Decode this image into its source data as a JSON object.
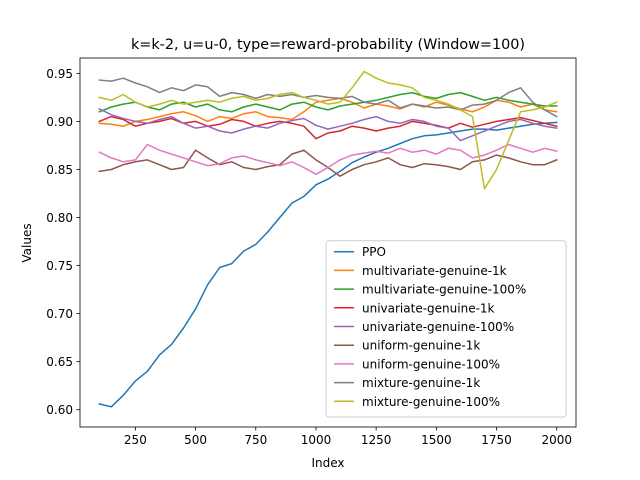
{
  "chart_data": {
    "type": "line",
    "title": "k=k-2, u=u-0, type=reward-probability (Window=100)",
    "xlabel": "Index",
    "ylabel": "Values",
    "xlim": [
      20,
      2080
    ],
    "ylim": [
      0.582,
      0.966
    ],
    "xticks": [
      250,
      500,
      750,
      1000,
      1250,
      1500,
      1750,
      2000
    ],
    "yticks": [
      0.6,
      0.65,
      0.7,
      0.75,
      0.8,
      0.85,
      0.9,
      0.95
    ],
    "xtick_labels": [
      "250",
      "500",
      "750",
      "1000",
      "1250",
      "1500",
      "1750",
      "2000"
    ],
    "ytick_labels": [
      "0.60",
      "0.65",
      "0.70",
      "0.75",
      "0.80",
      "0.85",
      "0.90",
      "0.95"
    ],
    "legend_position": "lower-right",
    "grid": false,
    "x": [
      100,
      150,
      200,
      250,
      300,
      350,
      400,
      450,
      500,
      550,
      600,
      650,
      700,
      750,
      800,
      850,
      900,
      950,
      1000,
      1050,
      1100,
      1150,
      1200,
      1250,
      1300,
      1350,
      1400,
      1450,
      1500,
      1550,
      1600,
      1650,
      1700,
      1750,
      1800,
      1850,
      1900,
      1950,
      2000
    ],
    "series": [
      {
        "name": "PPO",
        "color": "#1f77b4",
        "values": [
          0.606,
          0.603,
          0.615,
          0.63,
          0.64,
          0.657,
          0.668,
          0.685,
          0.705,
          0.73,
          0.748,
          0.752,
          0.765,
          0.772,
          0.785,
          0.8,
          0.815,
          0.822,
          0.834,
          0.84,
          0.848,
          0.857,
          0.863,
          0.868,
          0.872,
          0.877,
          0.882,
          0.885,
          0.886,
          0.888,
          0.89,
          0.892,
          0.892,
          0.891,
          0.893,
          0.895,
          0.897,
          0.898,
          0.899
        ]
      },
      {
        "name": "multivariate-genuine-1k",
        "color": "#ff7f0e",
        "values": [
          0.898,
          0.897,
          0.895,
          0.9,
          0.902,
          0.905,
          0.908,
          0.91,
          0.906,
          0.9,
          0.905,
          0.903,
          0.908,
          0.91,
          0.905,
          0.904,
          0.902,
          0.91,
          0.92,
          0.922,
          0.924,
          0.92,
          0.914,
          0.918,
          0.916,
          0.913,
          0.918,
          0.915,
          0.92,
          0.917,
          0.913,
          0.91,
          0.915,
          0.922,
          0.92,
          0.915,
          0.918,
          0.912,
          0.91
        ]
      },
      {
        "name": "multivariate-genuine-100%",
        "color": "#2ca02c",
        "values": [
          0.91,
          0.915,
          0.918,
          0.92,
          0.915,
          0.912,
          0.918,
          0.92,
          0.915,
          0.918,
          0.912,
          0.91,
          0.915,
          0.918,
          0.915,
          0.912,
          0.918,
          0.92,
          0.915,
          0.912,
          0.916,
          0.918,
          0.92,
          0.922,
          0.925,
          0.928,
          0.93,
          0.926,
          0.924,
          0.928,
          0.93,
          0.926,
          0.922,
          0.925,
          0.922,
          0.92,
          0.918,
          0.916,
          0.916
        ]
      },
      {
        "name": "univariate-genuine-1k",
        "color": "#d62728",
        "values": [
          0.9,
          0.905,
          0.902,
          0.895,
          0.898,
          0.9,
          0.903,
          0.898,
          0.9,
          0.895,
          0.897,
          0.902,
          0.9,
          0.895,
          0.898,
          0.9,
          0.898,
          0.895,
          0.882,
          0.888,
          0.89,
          0.895,
          0.893,
          0.89,
          0.893,
          0.895,
          0.9,
          0.898,
          0.896,
          0.893,
          0.898,
          0.894,
          0.897,
          0.9,
          0.902,
          0.904,
          0.901,
          0.898,
          0.895
        ]
      },
      {
        "name": "univariate-genuine-100%",
        "color": "#9467bd",
        "values": [
          0.913,
          0.907,
          0.903,
          0.9,
          0.898,
          0.902,
          0.905,
          0.898,
          0.893,
          0.895,
          0.89,
          0.888,
          0.892,
          0.895,
          0.893,
          0.898,
          0.901,
          0.903,
          0.896,
          0.892,
          0.895,
          0.898,
          0.902,
          0.905,
          0.9,
          0.898,
          0.902,
          0.9,
          0.895,
          0.893,
          0.88,
          0.885,
          0.89,
          0.895,
          0.9,
          0.902,
          0.898,
          0.895,
          0.893
        ]
      },
      {
        "name": "uniform-genuine-1k",
        "color": "#8c564b",
        "values": [
          0.848,
          0.85,
          0.855,
          0.858,
          0.86,
          0.855,
          0.85,
          0.852,
          0.87,
          0.862,
          0.855,
          0.858,
          0.852,
          0.85,
          0.853,
          0.855,
          0.866,
          0.87,
          0.86,
          0.852,
          0.843,
          0.85,
          0.855,
          0.858,
          0.862,
          0.855,
          0.852,
          0.856,
          0.855,
          0.853,
          0.85,
          0.858,
          0.86,
          0.865,
          0.862,
          0.858,
          0.855,
          0.855,
          0.86
        ]
      },
      {
        "name": "uniform-genuine-100%",
        "color": "#e377c2",
        "values": [
          0.868,
          0.862,
          0.858,
          0.86,
          0.876,
          0.87,
          0.866,
          0.862,
          0.858,
          0.854,
          0.856,
          0.862,
          0.864,
          0.86,
          0.857,
          0.854,
          0.858,
          0.852,
          0.845,
          0.852,
          0.86,
          0.865,
          0.867,
          0.869,
          0.867,
          0.872,
          0.868,
          0.87,
          0.866,
          0.872,
          0.87,
          0.862,
          0.865,
          0.87,
          0.876,
          0.872,
          0.868,
          0.872,
          0.869
        ]
      },
      {
        "name": "mixture-genuine-1k",
        "color": "#7f7f7f",
        "values": [
          0.943,
          0.942,
          0.945,
          0.94,
          0.936,
          0.93,
          0.935,
          0.932,
          0.938,
          0.936,
          0.926,
          0.93,
          0.928,
          0.924,
          0.928,
          0.926,
          0.928,
          0.925,
          0.927,
          0.925,
          0.924,
          0.926,
          0.92,
          0.918,
          0.922,
          0.914,
          0.918,
          0.916,
          0.914,
          0.915,
          0.912,
          0.917,
          0.918,
          0.922,
          0.93,
          0.935,
          0.92,
          0.912,
          0.905
        ]
      },
      {
        "name": "mixture-genuine-100%",
        "color": "#bcbd22",
        "values": [
          0.925,
          0.922,
          0.928,
          0.92,
          0.915,
          0.918,
          0.922,
          0.918,
          0.92,
          0.922,
          0.92,
          0.924,
          0.926,
          0.922,
          0.924,
          0.928,
          0.93,
          0.925,
          0.922,
          0.918,
          0.92,
          0.935,
          0.952,
          0.945,
          0.94,
          0.938,
          0.935,
          0.925,
          0.922,
          0.918,
          0.912,
          0.905,
          0.83,
          0.85,
          0.88,
          0.91,
          0.912,
          0.915,
          0.92
        ]
      }
    ]
  }
}
